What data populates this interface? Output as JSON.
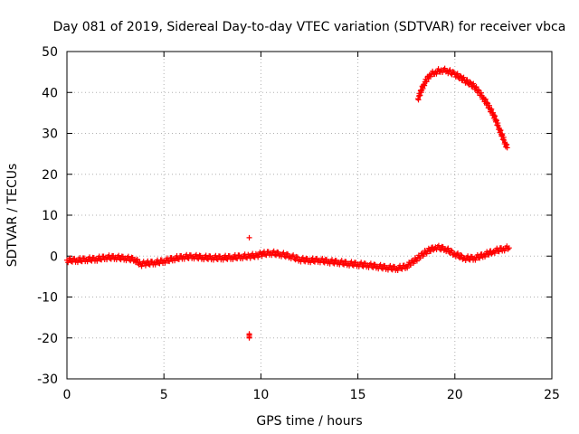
{
  "chart_data": {
    "type": "scatter",
    "title": "Day 081 of 2019, Sidereal Day-to-day VTEC variation (SDTVAR) for receiver vbca",
    "xlabel": "GPS time / hours",
    "ylabel": "SDTVAR / TECUs",
    "xlim": [
      0,
      25
    ],
    "ylim": [
      -30,
      50
    ],
    "xticks": [
      0,
      5,
      10,
      15,
      20,
      25
    ],
    "yticks": [
      -30,
      -20,
      -10,
      0,
      10,
      20,
      30,
      40,
      50
    ],
    "grid": true,
    "marker": "+",
    "series": [
      {
        "name": "SDTVAR",
        "color": "#ff0000",
        "x": [
          0.0,
          0.5,
          1.0,
          1.5,
          2.0,
          2.5,
          3.0,
          3.5,
          3.8,
          4.0,
          4.5,
          5.0,
          5.5,
          6.0,
          6.5,
          7.0,
          7.5,
          8.0,
          8.5,
          9.0,
          9.4,
          9.8,
          10.0,
          10.5,
          11.0,
          11.5,
          12.0,
          12.5,
          13.0,
          13.5,
          14.0,
          14.5,
          15.0,
          15.5,
          16.0,
          16.5,
          17.0,
          17.5,
          18.0,
          18.5,
          19.0,
          19.5,
          20.0,
          20.5,
          21.0,
          21.5,
          22.0,
          22.5,
          22.8,
          18.1,
          18.4,
          18.7,
          19.0,
          19.3,
          19.6,
          20.0,
          20.5,
          21.0,
          21.5,
          22.0,
          22.3,
          22.6,
          22.7,
          9.4,
          9.4,
          9.4
        ],
        "y": [
          -1.0,
          -1.0,
          -0.8,
          -0.7,
          -0.3,
          -0.3,
          -0.5,
          -0.8,
          -2.0,
          -1.8,
          -1.6,
          -1.2,
          -0.6,
          -0.2,
          -0.1,
          -0.3,
          -0.4,
          -0.4,
          -0.3,
          -0.1,
          0.0,
          0.2,
          0.5,
          0.8,
          0.5,
          0.0,
          -0.8,
          -1.0,
          -1.0,
          -1.3,
          -1.5,
          -1.8,
          -2.0,
          -2.2,
          -2.5,
          -2.8,
          -3.0,
          -2.5,
          -0.8,
          1.0,
          2.2,
          1.8,
          0.5,
          -0.5,
          -0.5,
          0.3,
          1.2,
          1.8,
          2.0,
          38.5,
          42.0,
          44.3,
          45.0,
          45.5,
          45.3,
          44.5,
          43.0,
          41.5,
          38.5,
          34.5,
          31.0,
          27.5,
          26.5,
          4.5,
          -19.0,
          -20.0
        ]
      }
    ]
  }
}
